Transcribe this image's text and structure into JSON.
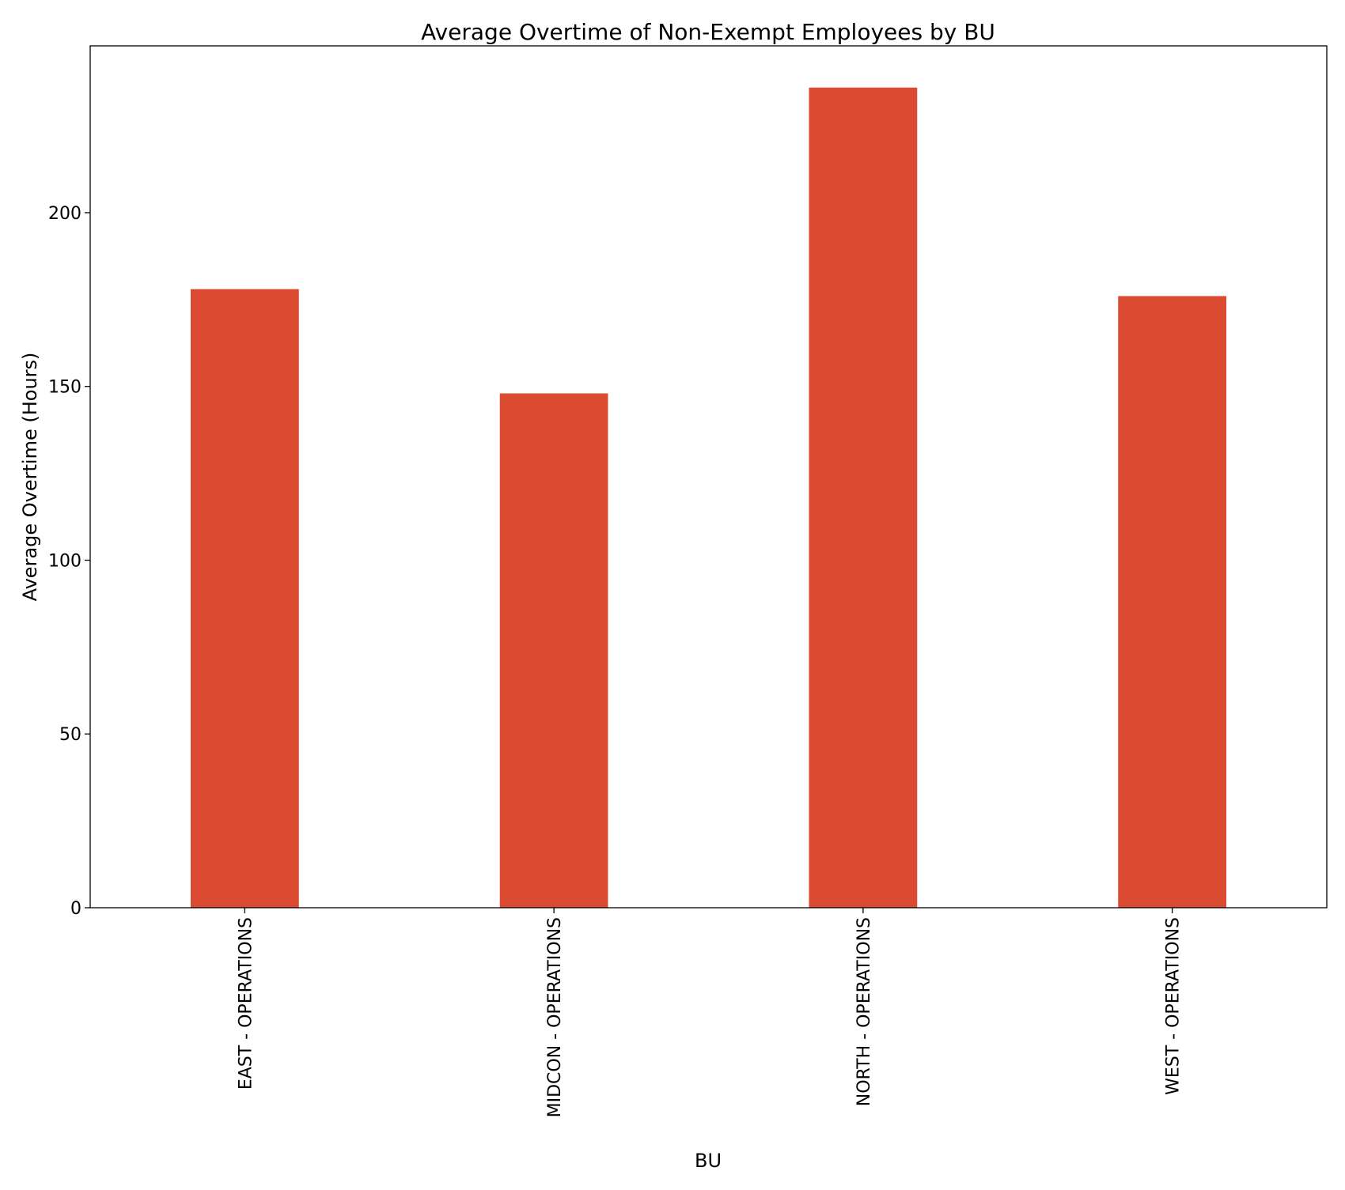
{
  "chart_data": {
    "type": "bar",
    "title": "Average Overtime of Non-Exempt Employees by BU",
    "xlabel": "BU",
    "ylabel": "Average Overtime (Hours)",
    "categories": [
      "EAST - OPERATIONS",
      "MIDCON - OPERATIONS",
      "NORTH - OPERATIONS",
      "WEST - OPERATIONS"
    ],
    "values": [
      178,
      148,
      236,
      176
    ],
    "ylim": [
      0,
      248
    ],
    "yticks": [
      0,
      50,
      100,
      150,
      200
    ],
    "ytick_labels": [
      "0",
      "50",
      "100",
      "150",
      "200"
    ],
    "bar_color": "#db4b31",
    "grid": false,
    "legend": "none"
  }
}
